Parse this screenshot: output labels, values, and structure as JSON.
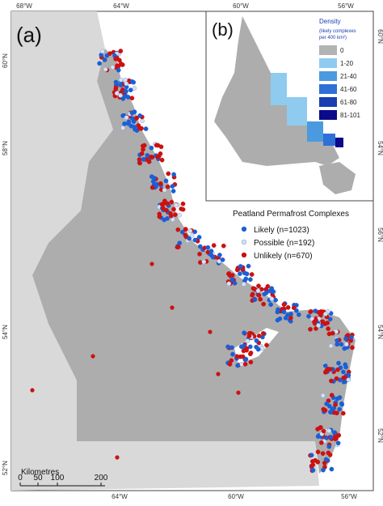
{
  "panels": {
    "a": "(a)",
    "b": "(b)"
  },
  "axes": {
    "top": [
      "68°W",
      "64°W",
      "60°W",
      "56°W"
    ],
    "bottom": [
      "64°W",
      "60°W",
      "56°W"
    ],
    "left": [
      "60°N",
      "58°N",
      "54°N",
      "52°N"
    ],
    "right": [
      "56°N",
      "54°N",
      "52°N"
    ],
    "inset_right": [
      "60°N",
      "54°N"
    ]
  },
  "legend": {
    "title": "Peatland Permafrost Complexes",
    "items": [
      "Likely (n=1023)",
      "Possible (n=192)",
      "Unlikely (n=670)"
    ]
  },
  "density_legend": {
    "title": "Density",
    "subtitle": [
      "(likely complexes",
      "per 400 km²)"
    ],
    "classes": [
      "0",
      "1-20",
      "21-40",
      "41-60",
      "61-80",
      "81-101"
    ]
  },
  "scale_bar": {
    "title": "Kilometres",
    "labels": [
      "0",
      "50",
      "100",
      "200"
    ]
  }
}
